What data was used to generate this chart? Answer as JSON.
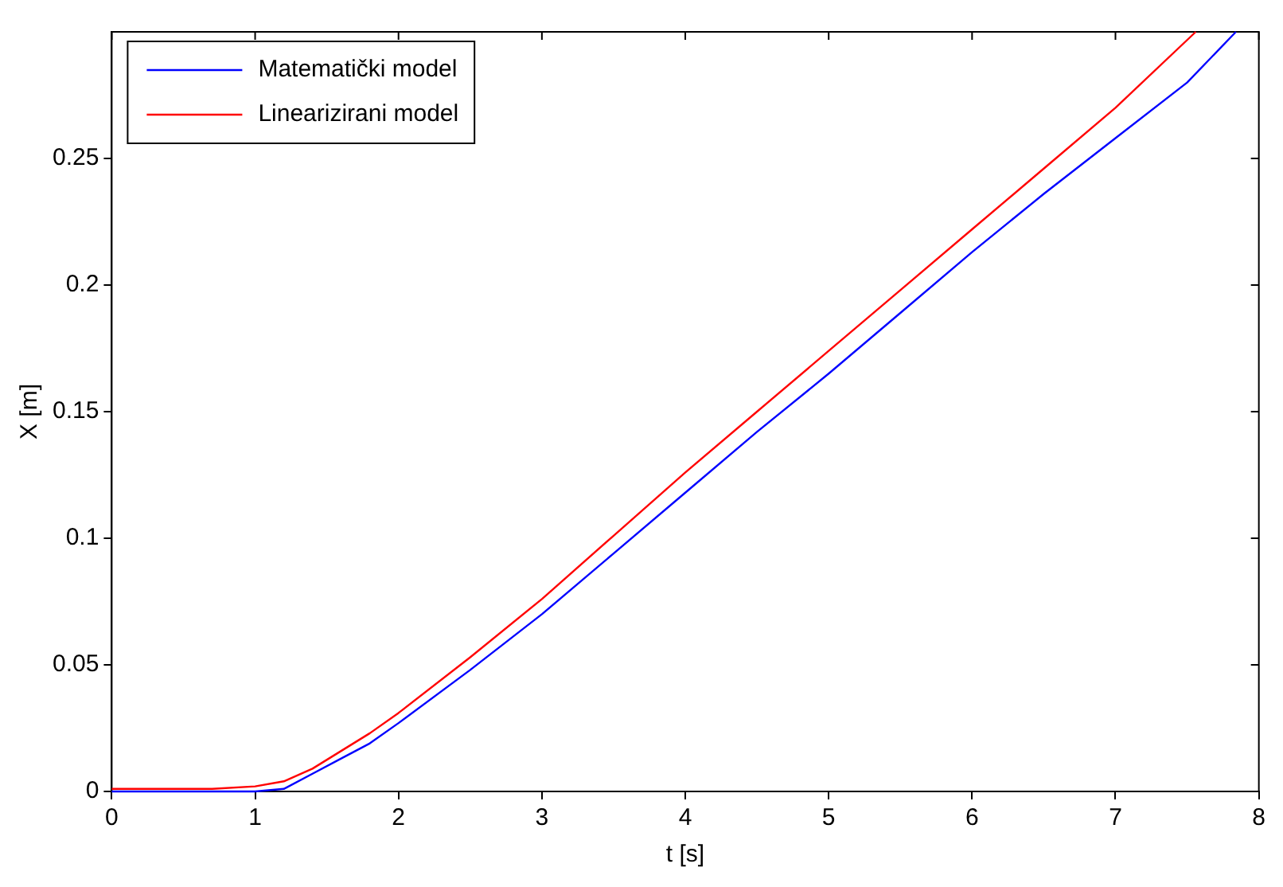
{
  "chart_data": {
    "type": "line",
    "xlabel": "t [s]",
    "ylabel": "X [m]",
    "xlim": [
      0,
      8
    ],
    "ylim": [
      0,
      0.3
    ],
    "xticks": [
      0,
      1,
      2,
      3,
      4,
      5,
      6,
      7,
      8
    ],
    "yticks": [
      0,
      0.05,
      0.1,
      0.15,
      0.2,
      0.25
    ],
    "legend": "top left",
    "grid": false,
    "marker": "none",
    "line_style": "solid",
    "series": [
      {
        "name": "Matematički model",
        "color": "#0000ff",
        "x": [
          0,
          0.5,
          1,
          1.2,
          1.4,
          1.6,
          1.8,
          2,
          2.5,
          3,
          3.5,
          4,
          4.5,
          5,
          5.5,
          6,
          6.5,
          7,
          7.5,
          7.84
        ],
        "values": [
          0,
          0,
          0,
          0.001,
          0.007,
          0.013,
          0.019,
          0.027,
          0.048,
          0.07,
          0.094,
          0.118,
          0.142,
          0.165,
          0.189,
          0.213,
          0.236,
          0.258,
          0.28,
          0.3
        ]
      },
      {
        "name": "Linearizirani model",
        "color": "#ff0000",
        "x": [
          0,
          0.5,
          0.7,
          1,
          1.2,
          1.4,
          1.6,
          1.8,
          2,
          2.5,
          3,
          3.5,
          4,
          4.5,
          5,
          5.5,
          6,
          6.5,
          7,
          7.56
        ],
        "values": [
          0.001,
          0.001,
          0.001,
          0.002,
          0.004,
          0.009,
          0.016,
          0.023,
          0.031,
          0.053,
          0.076,
          0.101,
          0.126,
          0.15,
          0.174,
          0.198,
          0.222,
          0.246,
          0.27,
          0.3
        ]
      }
    ]
  }
}
